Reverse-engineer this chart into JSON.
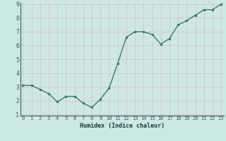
{
  "x": [
    0,
    1,
    2,
    3,
    4,
    5,
    6,
    7,
    8,
    9,
    10,
    11,
    12,
    13,
    14,
    15,
    16,
    17,
    18,
    19,
    20,
    21,
    22,
    23
  ],
  "y": [
    3.1,
    3.1,
    2.8,
    2.5,
    1.9,
    2.3,
    2.3,
    1.8,
    1.5,
    2.1,
    2.9,
    4.7,
    6.6,
    7.0,
    7.0,
    6.8,
    6.1,
    6.5,
    7.5,
    7.8,
    8.2,
    8.6,
    8.6,
    9.0
  ],
  "xlabel": "Humidex (Indice chaleur)",
  "ylim_min": 1,
  "ylim_max": 9,
  "xlim_min": 0,
  "xlim_max": 23,
  "yticks": [
    1,
    2,
    3,
    4,
    5,
    6,
    7,
    8,
    9
  ],
  "xticks": [
    0,
    1,
    2,
    3,
    4,
    5,
    6,
    7,
    8,
    9,
    10,
    11,
    12,
    13,
    14,
    15,
    16,
    17,
    18,
    19,
    20,
    21,
    22,
    23
  ],
  "line_color": "#2e7d6e",
  "marker_color": "#2e7d6e",
  "bg_color": "#cce8e4",
  "grid_color": "#e8b8b8",
  "tick_label_color": "#2e5f5f",
  "xlabel_color": "#1a3a3a",
  "font_size_tick": 5,
  "font_size_xlabel": 6,
  "linewidth": 1.0,
  "markersize": 2.0
}
